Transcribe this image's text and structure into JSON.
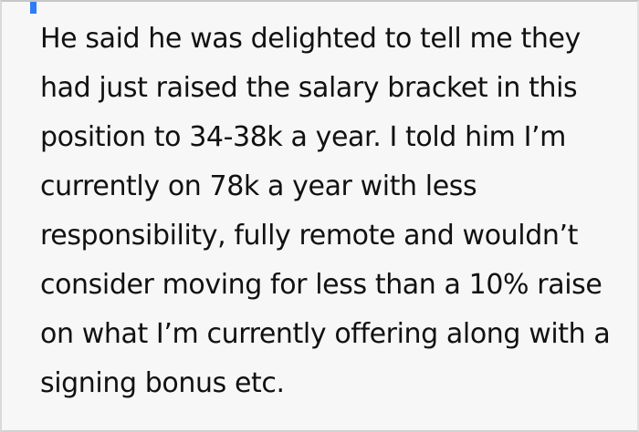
{
  "post": {
    "lines": [
      "He said he was delighted to tell me they",
      "had just raised the salary bracket in this",
      "position to 34-38k a year. I told him I’m",
      "currently on 78k a year with less",
      "responsibility, fully remote and wouldn’t",
      "consider moving for less than a 10% raise",
      "on what I’m currently offering along with a",
      "signing bonus etc."
    ]
  },
  "colors": {
    "background": "#f7f7f7",
    "text": "#111111",
    "border": "#d5d5d5",
    "caret_blue": "#2e7df6"
  }
}
